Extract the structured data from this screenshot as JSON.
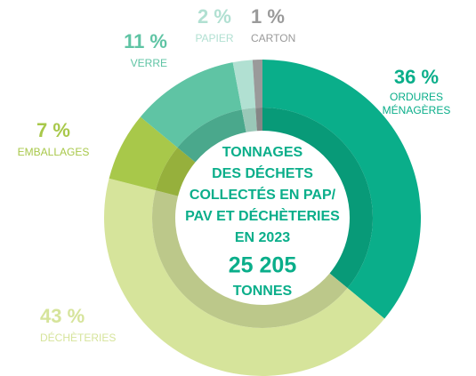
{
  "chart_data": {
    "type": "donut",
    "categories": [
      "ORDURES MÉNAGÈRES",
      "DÉCHÈTERIES",
      "EMBALLAGES",
      "VERRE",
      "PAPIER",
      "CARTON"
    ],
    "values": [
      36,
      43,
      7,
      11,
      2,
      1
    ],
    "value_labels": [
      "36 %",
      "43 %",
      "7 %",
      "11 %",
      "2 %",
      "1 %"
    ],
    "colors": [
      "#0aae8a",
      "#d6e49b",
      "#a8c84a",
      "#5fc4a4",
      "#b1e0d2",
      "#9a9a9a"
    ],
    "inner_colors": [
      "#089a78",
      "#bcc88a",
      "#96b03c",
      "#4aa88c",
      "#9ac8b8",
      "#868686"
    ],
    "center_text": [
      "TONNAGES",
      "DES DÉCHETS",
      "COLLECTÉS EN PAP/",
      "PAV ET DÉCHÈTERIES",
      "EN 2023"
    ],
    "total": "25 205",
    "unit": "TONNES"
  }
}
